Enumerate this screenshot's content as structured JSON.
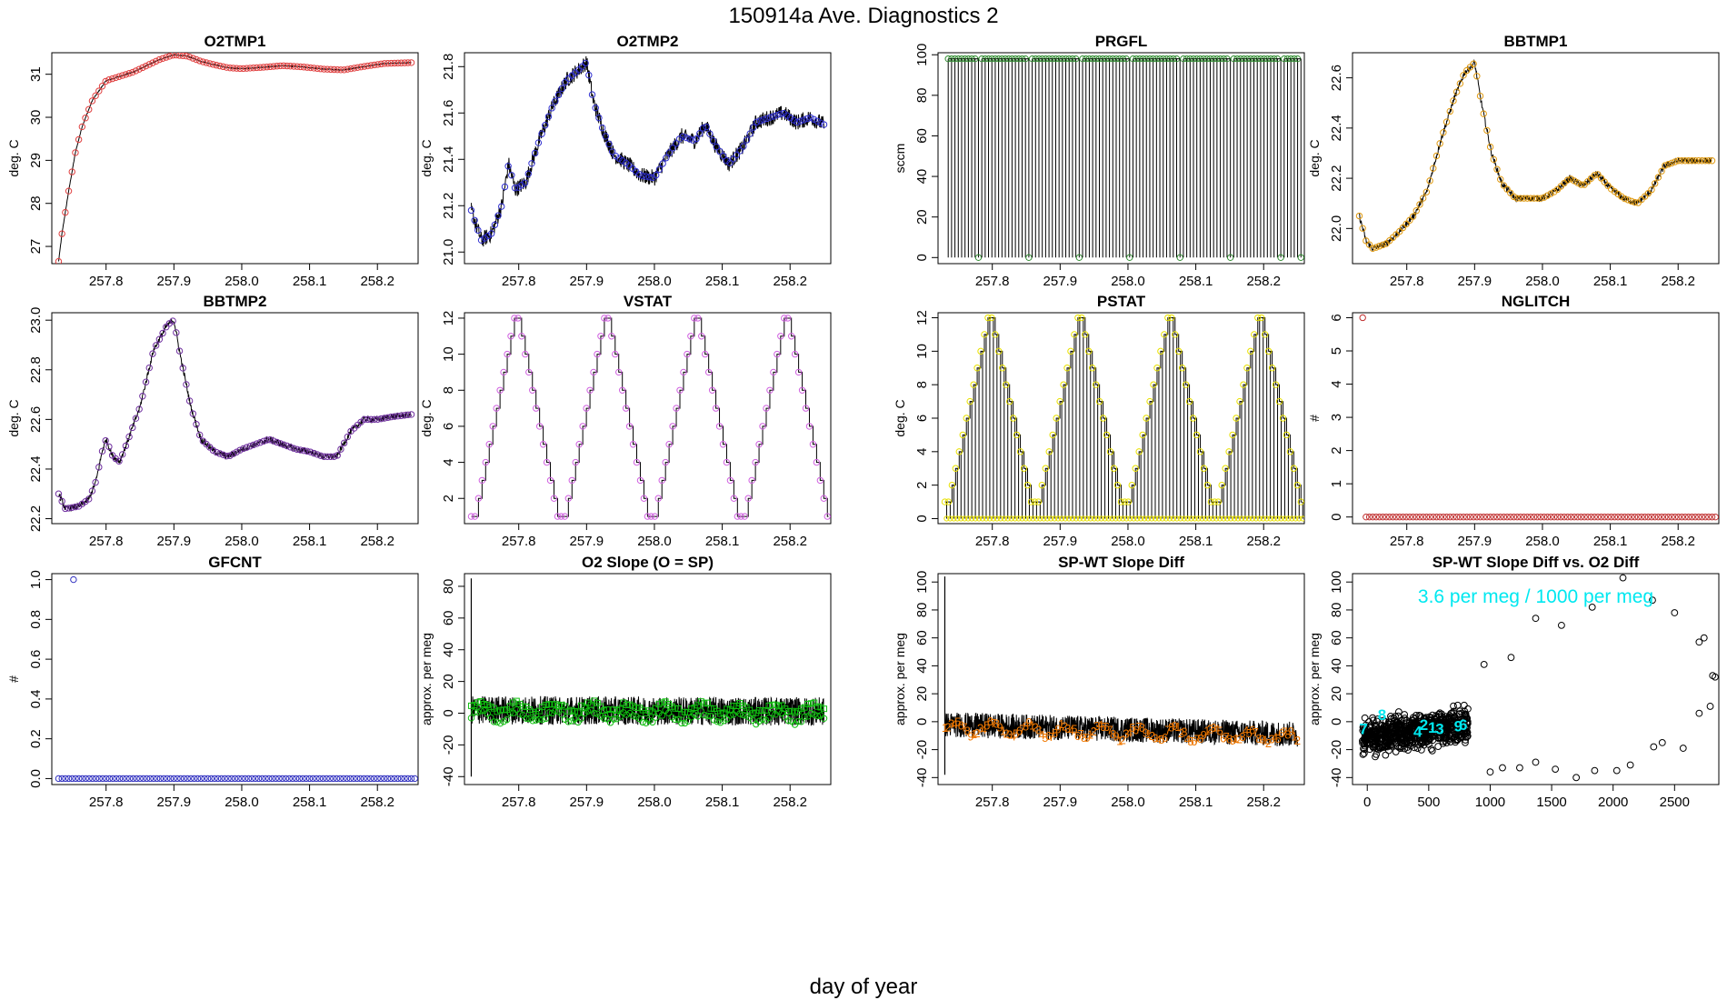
{
  "figure": {
    "title": "150914a   Ave. Diagnostics 2",
    "xlabel": "day of year"
  },
  "chart_data": [
    {
      "id": "o2tmp1",
      "type": "line",
      "title": "O2TMP1",
      "ylabel": "deg. C",
      "xlim": [
        257.72,
        258.26
      ],
      "ylim": [
        26.6,
        31.5
      ],
      "xticks": [
        257.8,
        257.9,
        258.0,
        258.1,
        258.2
      ],
      "yticks": [
        27,
        28,
        29,
        30,
        31
      ],
      "trace": [
        [
          257.73,
          26.65
        ],
        [
          257.735,
          27.3
        ],
        [
          257.745,
          28.3
        ],
        [
          257.755,
          29.2
        ],
        [
          257.765,
          29.8
        ],
        [
          257.78,
          30.4
        ],
        [
          257.8,
          30.85
        ],
        [
          257.82,
          30.95
        ],
        [
          257.84,
          31.05
        ],
        [
          257.86,
          31.2
        ],
        [
          257.88,
          31.35
        ],
        [
          257.9,
          31.45
        ],
        [
          257.92,
          31.42
        ],
        [
          257.94,
          31.3
        ],
        [
          257.96,
          31.22
        ],
        [
          257.98,
          31.15
        ],
        [
          258.0,
          31.13
        ],
        [
          258.03,
          31.16
        ],
        [
          258.06,
          31.2
        ],
        [
          258.09,
          31.17
        ],
        [
          258.12,
          31.12
        ],
        [
          258.15,
          31.1
        ],
        [
          258.18,
          31.18
        ],
        [
          258.21,
          31.25
        ],
        [
          258.25,
          31.27
        ]
      ],
      "noise": 0.012,
      "point_color": "#e04040",
      "marker": "circle"
    },
    {
      "id": "o2tmp2",
      "type": "line",
      "title": "O2TMP2",
      "ylabel": "deg. C",
      "xlim": [
        257.72,
        258.26
      ],
      "ylim": [
        20.95,
        21.86
      ],
      "xticks": [
        257.8,
        257.9,
        258.0,
        258.1,
        258.2
      ],
      "yticks": [
        21.0,
        21.2,
        21.4,
        21.6,
        21.8
      ],
      "trace": [
        [
          257.73,
          21.18
        ],
        [
          257.745,
          21.05
        ],
        [
          257.76,
          21.08
        ],
        [
          257.775,
          21.2
        ],
        [
          257.785,
          21.38
        ],
        [
          257.795,
          21.27
        ],
        [
          257.81,
          21.3
        ],
        [
          257.83,
          21.48
        ],
        [
          257.85,
          21.63
        ],
        [
          257.87,
          21.74
        ],
        [
          257.89,
          21.79
        ],
        [
          257.9,
          21.82
        ],
        [
          257.91,
          21.65
        ],
        [
          257.925,
          21.52
        ],
        [
          257.94,
          21.42
        ],
        [
          257.96,
          21.38
        ],
        [
          257.98,
          21.33
        ],
        [
          258.0,
          21.32
        ],
        [
          258.02,
          21.42
        ],
        [
          258.04,
          21.5
        ],
        [
          258.06,
          21.48
        ],
        [
          258.075,
          21.55
        ],
        [
          258.09,
          21.46
        ],
        [
          258.11,
          21.38
        ],
        [
          258.13,
          21.45
        ],
        [
          258.15,
          21.56
        ],
        [
          258.17,
          21.58
        ],
        [
          258.19,
          21.6
        ],
        [
          258.21,
          21.56
        ],
        [
          258.23,
          21.58
        ],
        [
          258.25,
          21.55
        ]
      ],
      "noise": 0.035,
      "point_color": "#3030d0",
      "marker": "circle"
    },
    {
      "id": "prgfl",
      "type": "line",
      "title": "PRGFL",
      "ylabel": "sccm",
      "xlim": [
        257.72,
        258.26
      ],
      "ylim": [
        -3,
        101
      ],
      "xticks": [
        257.8,
        257.9,
        258.0,
        258.1,
        258.2
      ],
      "yticks": [
        0,
        20,
        40,
        60,
        80,
        100
      ],
      "pattern": {
        "kind": "spikes",
        "high": 98,
        "low": 0,
        "n": 106,
        "zero_every": 15
      },
      "point_color": "#2e8b2e",
      "marker": "circle"
    },
    {
      "id": "bbtmp1",
      "type": "line",
      "title": "BBTMP1",
      "ylabel": "deg. C",
      "xlim": [
        257.72,
        258.26
      ],
      "ylim": [
        21.86,
        22.7
      ],
      "xticks": [
        257.8,
        257.9,
        258.0,
        258.1,
        258.2
      ],
      "yticks": [
        22.0,
        22.2,
        22.4,
        22.6
      ],
      "trace": [
        [
          257.73,
          22.05
        ],
        [
          257.74,
          21.95
        ],
        [
          257.75,
          21.92
        ],
        [
          257.77,
          21.94
        ],
        [
          257.79,
          21.99
        ],
        [
          257.81,
          22.05
        ],
        [
          257.83,
          22.15
        ],
        [
          257.85,
          22.35
        ],
        [
          257.87,
          22.52
        ],
        [
          257.885,
          22.62
        ],
        [
          257.9,
          22.66
        ],
        [
          257.91,
          22.5
        ],
        [
          257.925,
          22.3
        ],
        [
          257.94,
          22.18
        ],
        [
          257.96,
          22.12
        ],
        [
          257.98,
          22.12
        ],
        [
          258.0,
          22.12
        ],
        [
          258.02,
          22.15
        ],
        [
          258.04,
          22.2
        ],
        [
          258.06,
          22.17
        ],
        [
          258.08,
          22.22
        ],
        [
          258.1,
          22.16
        ],
        [
          258.12,
          22.12
        ],
        [
          258.14,
          22.1
        ],
        [
          258.16,
          22.15
        ],
        [
          258.18,
          22.25
        ],
        [
          258.2,
          22.27
        ],
        [
          258.22,
          22.27
        ],
        [
          258.25,
          22.27
        ]
      ],
      "noise": 0.012,
      "point_color": "#e09a10",
      "marker": "circle"
    },
    {
      "id": "bbtmp2",
      "type": "line",
      "title": "BBTMP2",
      "ylabel": "deg. C",
      "xlim": [
        257.72,
        258.26
      ],
      "ylim": [
        22.18,
        23.03
      ],
      "xticks": [
        257.8,
        257.9,
        258.0,
        258.1,
        258.2
      ],
      "yticks": [
        22.2,
        22.4,
        22.6,
        22.8,
        23.0
      ],
      "trace": [
        [
          257.73,
          22.3
        ],
        [
          257.74,
          22.24
        ],
        [
          257.76,
          22.25
        ],
        [
          257.775,
          22.28
        ],
        [
          257.785,
          22.35
        ],
        [
          257.795,
          22.48
        ],
        [
          257.8,
          22.52
        ],
        [
          257.81,
          22.45
        ],
        [
          257.82,
          22.43
        ],
        [
          257.83,
          22.5
        ],
        [
          257.85,
          22.65
        ],
        [
          257.87,
          22.88
        ],
        [
          257.89,
          22.98
        ],
        [
          257.9,
          23.0
        ],
        [
          257.91,
          22.85
        ],
        [
          257.925,
          22.65
        ],
        [
          257.94,
          22.52
        ],
        [
          257.96,
          22.47
        ],
        [
          257.98,
          22.45
        ],
        [
          258.0,
          22.48
        ],
        [
          258.02,
          22.5
        ],
        [
          258.04,
          22.52
        ],
        [
          258.06,
          22.5
        ],
        [
          258.08,
          22.48
        ],
        [
          258.1,
          22.47
        ],
        [
          258.12,
          22.45
        ],
        [
          258.14,
          22.45
        ],
        [
          258.16,
          22.55
        ],
        [
          258.18,
          22.6
        ],
        [
          258.2,
          22.6
        ],
        [
          258.22,
          22.61
        ],
        [
          258.25,
          22.62
        ]
      ],
      "noise": 0.012,
      "point_color": "#7030a0",
      "marker": "circle"
    },
    {
      "id": "vstat",
      "type": "line",
      "title": "VSTAT",
      "ylabel": "deg. C",
      "xlim": [
        257.72,
        258.26
      ],
      "ylim": [
        0.6,
        12.3
      ],
      "xticks": [
        257.8,
        257.9,
        258.0,
        258.1,
        258.2
      ],
      "yticks": [
        2,
        4,
        6,
        8,
        10,
        12
      ],
      "pattern": {
        "kind": "steps",
        "values": [
          1,
          1,
          2,
          3,
          4,
          5,
          6,
          7,
          8,
          9,
          10,
          11,
          12,
          12,
          11,
          10,
          9,
          8,
          7,
          6,
          5,
          4,
          3,
          2,
          1
        ],
        "cycles": 4,
        "x0": 257.73,
        "x1": 258.255
      },
      "point_color": "#d060e0",
      "marker": "circle"
    },
    {
      "id": "pstat",
      "type": "line",
      "title": "PSTAT",
      "ylabel": "deg. C",
      "xlim": [
        257.72,
        258.26
      ],
      "ylim": [
        -0.3,
        12.3
      ],
      "xticks": [
        257.8,
        257.9,
        258.0,
        258.1,
        258.2
      ],
      "yticks": [
        0,
        2,
        4,
        6,
        8,
        10,
        12
      ],
      "pattern": {
        "kind": "stepspikes",
        "values": [
          1,
          1,
          2,
          3,
          4,
          5,
          6,
          7,
          8,
          9,
          10,
          11,
          12,
          12,
          11,
          10,
          9,
          8,
          7,
          6,
          5,
          4,
          3,
          2,
          1
        ],
        "cycles": 4,
        "x0": 257.73,
        "x1": 258.255
      },
      "point_color": "#e8e000",
      "marker": "circle"
    },
    {
      "id": "nglitch",
      "type": "scatter",
      "title": "NGLITCH",
      "ylabel": "#",
      "xlim": [
        257.72,
        258.26
      ],
      "ylim": [
        -0.2,
        6.15
      ],
      "xticks": [
        257.8,
        257.9,
        258.0,
        258.1,
        258.2
      ],
      "yticks": [
        0,
        1,
        2,
        3,
        4,
        5,
        6
      ],
      "points": {
        "kind": "constant",
        "x0": 257.735,
        "x1": 258.255,
        "n": 106,
        "y": 0,
        "first_y": 6
      },
      "point_color": "#c03030",
      "marker": "circle"
    },
    {
      "id": "gfcnt",
      "type": "scatter",
      "title": "GFCNT",
      "ylabel": "#",
      "xlim": [
        257.72,
        258.26
      ],
      "ylim": [
        -0.03,
        1.03
      ],
      "xticks": [
        257.8,
        257.9,
        258.0,
        258.1,
        258.2
      ],
      "yticks": [
        0.0,
        0.2,
        0.4,
        0.6,
        0.8,
        1.0
      ],
      "points": {
        "kind": "constant",
        "x0": 257.73,
        "x1": 258.255,
        "n": 106,
        "y": 0,
        "spike_x": 257.752,
        "spike_y": 1
      },
      "point_color": "#3030c0",
      "marker": "circle"
    },
    {
      "id": "o2slope",
      "type": "line",
      "title": "O2 Slope (O = SP)",
      "ylabel": "approx. per meg",
      "xlim": [
        257.72,
        258.26
      ],
      "ylim": [
        -45,
        88
      ],
      "xticks": [
        257.8,
        257.9,
        258.0,
        258.1,
        258.2
      ],
      "yticks": [
        -40,
        -20,
        0,
        20,
        40,
        60,
        80
      ],
      "noise_band": {
        "center": [
          [
            257.73,
            2
          ],
          [
            258.25,
            1
          ]
        ],
        "amp": 9,
        "spike": [
          257.73,
          85,
          -40
        ]
      },
      "markers": [
        {
          "symbol": "square",
          "center": 4,
          "amp": 3
        },
        {
          "symbol": "circle",
          "center": -2,
          "amp": 3
        }
      ],
      "point_color": "#10c010"
    },
    {
      "id": "spwt",
      "type": "line",
      "title": "SP-WT Slope Diff",
      "ylabel": "approx. per meg",
      "xlim": [
        257.72,
        258.26
      ],
      "ylim": [
        -45,
        106
      ],
      "xticks": [
        257.8,
        257.9,
        258.0,
        258.1,
        258.2
      ],
      "yticks": [
        -40,
        -20,
        0,
        20,
        40,
        60,
        80,
        100
      ],
      "noise_band": {
        "center": [
          [
            257.73,
            -2
          ],
          [
            258.25,
            -9
          ]
        ],
        "amp": 9,
        "spike": [
          257.73,
          104,
          -38
        ]
      },
      "markers": [
        {
          "symbol": "digits",
          "center": -4,
          "amp": 4
        }
      ],
      "point_color": "#f07800"
    },
    {
      "id": "scatterdiff",
      "type": "scatter",
      "title": "SP-WT Slope Diff vs. O2 Diff",
      "ylabel": "approx. per meg",
      "xlim": [
        -120,
        2860
      ],
      "ylim": [
        -45,
        106
      ],
      "xticks": [
        0,
        500,
        1000,
        1500,
        2000,
        2500
      ],
      "yticks": [
        -40,
        -20,
        0,
        20,
        40,
        60,
        80,
        100
      ],
      "annotation": "3.6 per meg / 1000 per meg",
      "annotation_color": "#00e8f0",
      "cloud": {
        "x": [
          -40,
          820
        ],
        "y": [
          -12,
          -2
        ],
        "spread": 12
      },
      "outliers": [
        [
          950,
          41
        ],
        [
          1000,
          -36
        ],
        [
          1100,
          -33
        ],
        [
          1170,
          46
        ],
        [
          1240,
          -33
        ],
        [
          1370,
          74
        ],
        [
          1370,
          -29
        ],
        [
          1530,
          -34
        ],
        [
          1580,
          69
        ],
        [
          1700,
          -40
        ],
        [
          1830,
          82
        ],
        [
          1850,
          -35
        ],
        [
          2030,
          -35
        ],
        [
          2080,
          103
        ],
        [
          2140,
          -31
        ],
        [
          2320,
          87
        ],
        [
          2330,
          -18
        ],
        [
          2400,
          -15
        ],
        [
          2500,
          78
        ],
        [
          2570,
          -19
        ],
        [
          2700,
          57
        ],
        [
          2700,
          6
        ],
        [
          2740,
          60
        ],
        [
          2790,
          11
        ],
        [
          2810,
          33
        ],
        [
          2830,
          32
        ]
      ],
      "digits": [
        [
          "7",
          -30,
          -5
        ],
        [
          "8",
          120,
          5
        ],
        [
          "4",
          410,
          -7
        ],
        [
          "2",
          460,
          -2
        ],
        [
          "1",
          530,
          -4
        ],
        [
          "3",
          590,
          -5
        ],
        [
          "9",
          740,
          -3
        ],
        [
          "6",
          780,
          -2
        ]
      ],
      "point_color": "#000000"
    }
  ]
}
